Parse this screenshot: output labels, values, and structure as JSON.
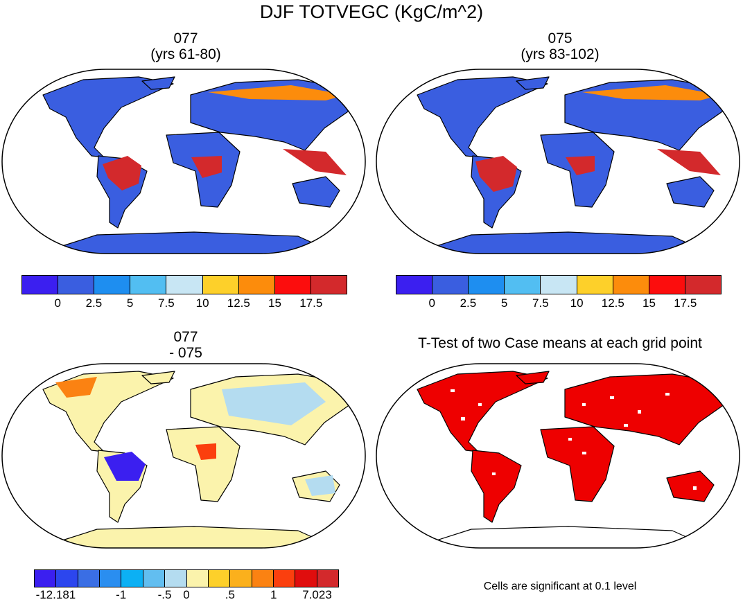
{
  "title": "DJF TOTVEGC (KgC/m^2)",
  "panels": {
    "top_left": {
      "line1": "077",
      "line2": "(yrs 61-80)"
    },
    "top_right": {
      "line1": "075",
      "line2": "(yrs 83-102)"
    },
    "bottom_left": {
      "line1": "077",
      "line2": "- 075"
    },
    "bottom_right": {
      "title": "T-Test of two Case means at each grid point"
    }
  },
  "colorbar_abs": {
    "colors": [
      "#3b1ff0",
      "#3a5ee0",
      "#1e8ef0",
      "#52bef2",
      "#c8e6f4",
      "#fdd02a",
      "#fc8c0c",
      "#fc0d0d",
      "#d3292c"
    ],
    "labels": [
      "0",
      "2.5",
      "5",
      "7.5",
      "10",
      "12.5",
      "15",
      "17.5"
    ]
  },
  "colorbar_diff": {
    "colors": [
      "#3b1ff0",
      "#2c46ee",
      "#3a6ee4",
      "#2a8ef0",
      "#0cb0f4",
      "#62bef0",
      "#b4dcf0",
      "#fbf3ac",
      "#fdd02a",
      "#fbb01c",
      "#fb8212",
      "#fb3f0e",
      "#e00d0d",
      "#d3292c"
    ],
    "labels": [
      "-12.181",
      "-1",
      "-.5",
      "0",
      ".5",
      "1",
      "7.023"
    ]
  },
  "significance_note": "Cells are significant at 0.1 level",
  "colors": {
    "ocean": "#ffffff",
    "land_low": "#3a5ee0",
    "tropical_high": "#d3292c",
    "diff_neutral": "#fbf3ac",
    "significant": "#ee0000"
  }
}
